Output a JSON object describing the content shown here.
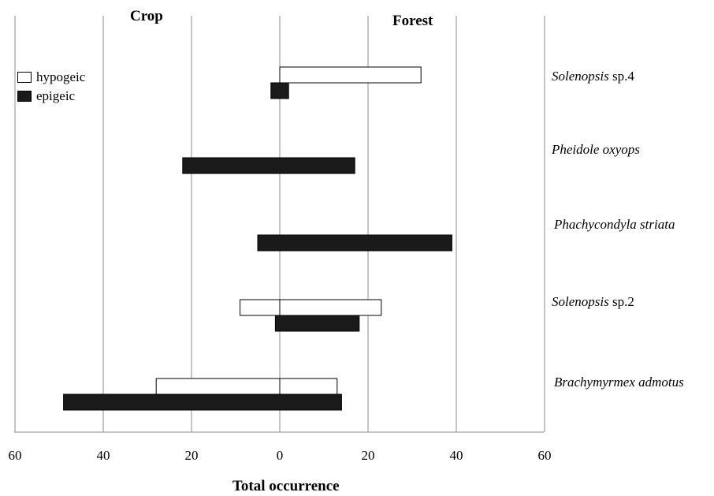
{
  "chart_data": {
    "type": "bar",
    "orientation": "horizontal",
    "layout": "back-to-back",
    "left_header": "Crop",
    "right_header": "Forest",
    "xlabel": "Total occurrence",
    "xlim": [
      -60,
      60
    ],
    "ticks": [
      -60,
      -40,
      -20,
      0,
      20,
      40,
      60
    ],
    "tick_labels": [
      "60",
      "40",
      "20",
      "0",
      "20",
      "40",
      "60"
    ],
    "grid": "vertical",
    "legend_placement": "top-left",
    "categories": [
      {
        "name": "Solenopsis",
        "suffix": " sp.4"
      },
      {
        "name": "Pheidole oxyops",
        "suffix": ""
      },
      {
        "name": "Phachycondyla striata",
        "suffix": ""
      },
      {
        "name": "Solenopsis",
        "suffix": " sp.2"
      },
      {
        "name": "Brachymyrmex admotus",
        "suffix": ""
      }
    ],
    "series": [
      {
        "name": "hypogeic",
        "color": "#ffffff",
        "crop": [
          0,
          null,
          null,
          9,
          28
        ],
        "forest": [
          32,
          null,
          null,
          23,
          13
        ]
      },
      {
        "name": "epigeic",
        "color": "#1a1a1a",
        "crop": [
          2,
          22,
          5,
          1,
          49
        ],
        "forest": [
          2,
          17,
          39,
          18,
          14
        ]
      }
    ]
  }
}
